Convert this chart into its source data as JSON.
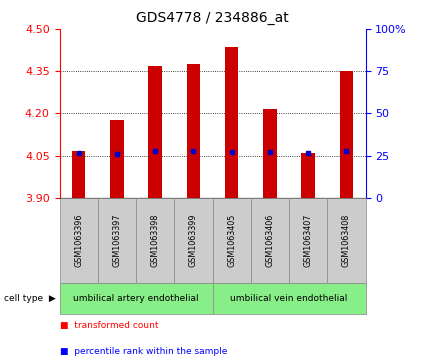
{
  "title": "GDS4778 / 234886_at",
  "samples": [
    "GSM1063396",
    "GSM1063397",
    "GSM1063398",
    "GSM1063399",
    "GSM1063405",
    "GSM1063406",
    "GSM1063407",
    "GSM1063408"
  ],
  "bar_tops": [
    4.065,
    4.175,
    4.37,
    4.375,
    4.435,
    4.215,
    4.06,
    4.35
  ],
  "bar_bottom": 3.9,
  "blue_dots": [
    4.06,
    4.055,
    4.068,
    4.068,
    4.063,
    4.062,
    4.058,
    4.068
  ],
  "ylim": [
    3.9,
    4.5
  ],
  "yticks_left": [
    3.9,
    4.05,
    4.2,
    4.35,
    4.5
  ],
  "yticks_right": [
    0,
    25,
    50,
    75,
    100
  ],
  "bar_color": "#cc0000",
  "blue_color": "#0000cc",
  "group1_label": "umbilical artery endothelial",
  "group2_label": "umbilical vein endothelial",
  "legend_red": "transformed count",
  "legend_blue": "percentile rank within the sample",
  "cell_type_label": "cell type",
  "bar_width": 0.35,
  "plot_bg": "#ffffff",
  "green_color": "#88ee88",
  "gray_color": "#cccccc"
}
